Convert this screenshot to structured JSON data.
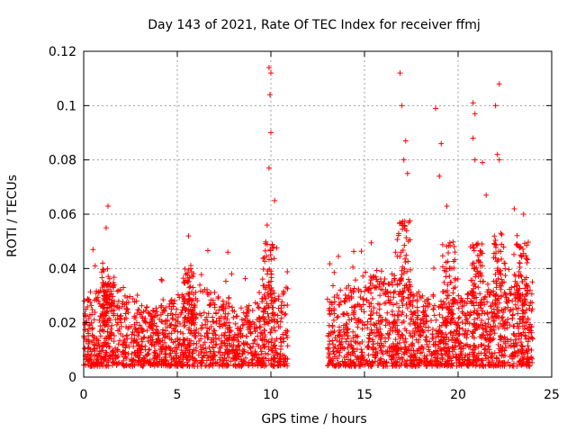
{
  "chart_data": {
    "type": "scatter",
    "title": "Day 143 of 2021, Rate Of TEC Index for receiver ffmj",
    "xlabel": "GPS time / hours",
    "ylabel": "ROTI / TECUs",
    "xlim": [
      0,
      25
    ],
    "ylim": [
      0,
      0.12
    ],
    "xticks": [
      "0",
      "5",
      "10",
      "15",
      "20",
      "25"
    ],
    "xtick_values": [
      0,
      5,
      10,
      15,
      20,
      25
    ],
    "yticks": [
      "0",
      "0.02",
      "0.04",
      "0.06",
      "0.08",
      "0.1",
      "0.12"
    ],
    "ytick_values": [
      0,
      0.02,
      0.04,
      0.06,
      0.08,
      0.1,
      0.12
    ],
    "grid": true,
    "marker": "+",
    "color": "#ff0000",
    "data_gap_hours": [
      10.9,
      13.0
    ],
    "series": [
      {
        "name": "ROTI",
        "notable_points": [
          {
            "x": 1.3,
            "y": 0.063
          },
          {
            "x": 1.2,
            "y": 0.055
          },
          {
            "x": 0.5,
            "y": 0.047
          },
          {
            "x": 5.6,
            "y": 0.052
          },
          {
            "x": 7.7,
            "y": 0.046
          },
          {
            "x": 9.9,
            "y": 0.114
          },
          {
            "x": 10.0,
            "y": 0.112
          },
          {
            "x": 9.95,
            "y": 0.104
          },
          {
            "x": 10.0,
            "y": 0.09
          },
          {
            "x": 9.9,
            "y": 0.077
          },
          {
            "x": 10.2,
            "y": 0.065
          },
          {
            "x": 9.8,
            "y": 0.056
          },
          {
            "x": 16.9,
            "y": 0.112
          },
          {
            "x": 17.0,
            "y": 0.1
          },
          {
            "x": 17.2,
            "y": 0.087
          },
          {
            "x": 17.1,
            "y": 0.08
          },
          {
            "x": 17.3,
            "y": 0.075
          },
          {
            "x": 18.8,
            "y": 0.099
          },
          {
            "x": 19.1,
            "y": 0.086
          },
          {
            "x": 19.0,
            "y": 0.074
          },
          {
            "x": 19.4,
            "y": 0.063
          },
          {
            "x": 20.8,
            "y": 0.101
          },
          {
            "x": 20.9,
            "y": 0.097
          },
          {
            "x": 20.8,
            "y": 0.088
          },
          {
            "x": 20.9,
            "y": 0.08
          },
          {
            "x": 21.3,
            "y": 0.079
          },
          {
            "x": 22.2,
            "y": 0.108
          },
          {
            "x": 22.0,
            "y": 0.1
          },
          {
            "x": 22.1,
            "y": 0.082
          },
          {
            "x": 22.2,
            "y": 0.08
          },
          {
            "x": 21.5,
            "y": 0.067
          },
          {
            "x": 23.5,
            "y": 0.06
          },
          {
            "x": 23.0,
            "y": 0.062
          }
        ]
      }
    ]
  }
}
